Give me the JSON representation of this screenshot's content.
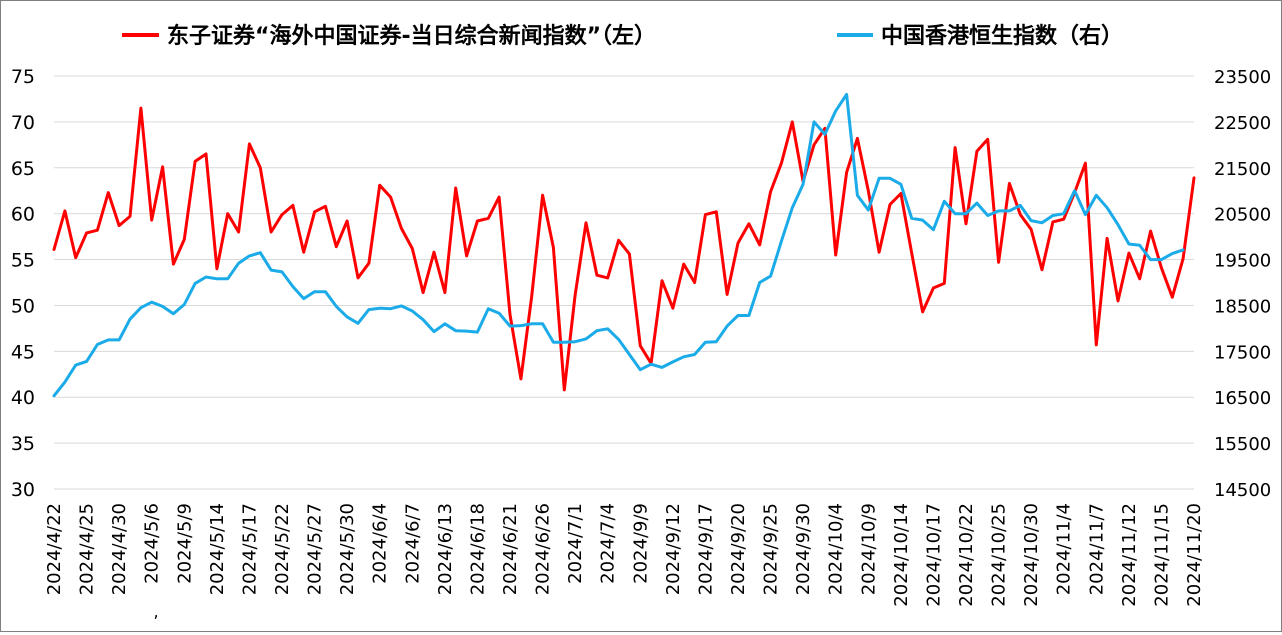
{
  "chart_data": {
    "type": "line",
    "legend": {
      "position": "top"
    },
    "grid": {
      "horizontal": true,
      "vertical": false
    },
    "left_axis": {
      "min": 30,
      "max": 75,
      "step": 5
    },
    "right_axis": {
      "min": 14500,
      "max": 23500,
      "step": 1000
    },
    "x_tick_labels": [
      "2024/4/22",
      "2024/4/25",
      "2024/4/30",
      "2024/5/6",
      "2024/5/9",
      "2024/5/14",
      "2024/5/17",
      "2024/5/22",
      "2024/5/27",
      "2024/5/30",
      "2024/6/4",
      "2024/6/7",
      "2024/6/13",
      "2024/6/18",
      "2024/6/21",
      "2024/6/26",
      "2024/7/1",
      "2024/7/4",
      "2024/9/9",
      "2024/9/12",
      "2024/9/17",
      "2024/9/20",
      "2024/9/25",
      "2024/9/30",
      "2024/10/4",
      "2024/10/9",
      "2024/10/14",
      "2024/10/17",
      "2024/10/22",
      "2024/10/25",
      "2024/10/30",
      "2024/11/4",
      "2024/11/7",
      "2024/11/12",
      "2024/11/15",
      "2024/11/20"
    ],
    "x_tick_step": 3,
    "stray_mark": ",",
    "series": [
      {
        "name": "东子证券“海外中国证券-当日综合新闻指数”（左）",
        "axis": "left",
        "color": "#ff0000",
        "values": [
          56.1,
          60.3,
          55.2,
          57.9,
          58.2,
          62.3,
          58.7,
          59.7,
          71.5,
          59.3,
          65.1,
          54.5,
          57.2,
          65.7,
          66.5,
          54,
          60,
          58,
          67.6,
          65,
          58,
          59.9,
          60.9,
          55.8,
          60.2,
          60.8,
          56.4,
          59.2,
          53,
          54.6,
          63.1,
          61.8,
          58.4,
          56.2,
          51.4,
          55.8,
          51.4,
          62.8,
          55.4,
          59.2,
          59.5,
          61.8,
          49,
          42,
          51,
          62,
          56.3,
          40.8,
          51.1,
          59,
          53.3,
          53,
          57.1,
          55.6,
          45.6,
          43.7,
          52.7,
          49.7,
          54.5,
          52.5,
          59.9,
          60.2,
          51.2,
          56.8,
          58.9,
          56.6,
          62.4,
          65.5,
          70,
          63.5,
          67.5,
          69.3,
          55.5,
          64.5,
          68.2,
          62.5,
          55.8,
          61,
          62.2,
          55.7,
          49.3,
          51.9,
          52.4,
          67.2,
          58.9,
          66.8,
          68.1,
          54.7,
          63.3,
          59.9,
          58.3,
          53.9,
          59.1,
          59.4,
          62.3,
          65.5,
          45.7,
          57.3,
          50.5,
          55.7,
          52.9,
          58.1,
          54.1,
          50.9,
          55.1,
          63.9
        ]
      },
      {
        "name": "中国香港恒生指数（右）",
        "axis": "right",
        "color": "#1aabe8",
        "values": [
          16530,
          16830,
          17200,
          17280,
          17650,
          17750,
          17750,
          18200,
          18450,
          18570,
          18480,
          18320,
          18520,
          18980,
          19120,
          19080,
          19080,
          19420,
          19580,
          19650,
          19270,
          19230,
          18910,
          18650,
          18800,
          18800,
          18480,
          18250,
          18110,
          18410,
          18440,
          18430,
          18490,
          18380,
          18190,
          17930,
          18100,
          17950,
          17940,
          17920,
          18430,
          18330,
          18050,
          18060,
          18100,
          18100,
          17700,
          17700,
          17710,
          17770,
          17950,
          17990,
          17760,
          17430,
          17100,
          17220,
          17150,
          17270,
          17380,
          17430,
          17700,
          17710,
          18050,
          18280,
          18280,
          19000,
          19140,
          19900,
          20630,
          21140,
          22500,
          22230,
          22740,
          23100,
          20900,
          20580,
          21270,
          21270,
          21140,
          20400,
          20360,
          20150,
          20770,
          20500,
          20500,
          20730,
          20460,
          20560,
          20560,
          20680,
          20350,
          20300,
          20460,
          20500,
          21000,
          20480,
          20900,
          20630,
          20260,
          19840,
          19810,
          19500,
          19500,
          19630,
          19710
        ]
      }
    ]
  }
}
